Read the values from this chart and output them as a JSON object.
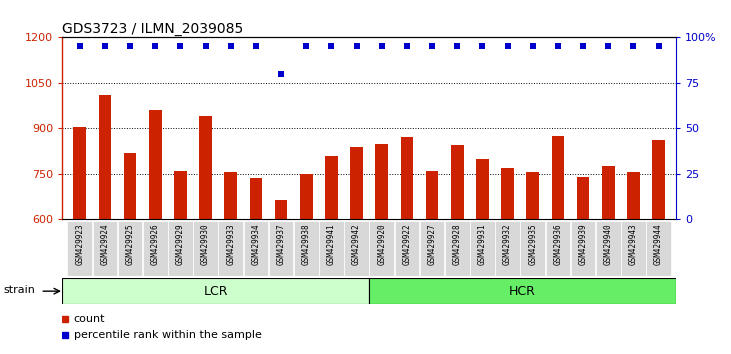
{
  "title": "GDS3723 / ILMN_2039085",
  "samples": [
    "GSM429923",
    "GSM429924",
    "GSM429925",
    "GSM429926",
    "GSM429929",
    "GSM429930",
    "GSM429933",
    "GSM429934",
    "GSM429937",
    "GSM429938",
    "GSM429941",
    "GSM429942",
    "GSM429920",
    "GSM429922",
    "GSM429927",
    "GSM429928",
    "GSM429931",
    "GSM429932",
    "GSM429935",
    "GSM429936",
    "GSM429939",
    "GSM429940",
    "GSM429943",
    "GSM429944"
  ],
  "bar_values": [
    905,
    1010,
    820,
    960,
    760,
    940,
    755,
    735,
    665,
    750,
    810,
    840,
    850,
    870,
    760,
    845,
    800,
    770,
    755,
    875,
    740,
    775,
    755,
    860
  ],
  "percentile_values": [
    95,
    95,
    95,
    95,
    95,
    95,
    95,
    95,
    80,
    95,
    95,
    95,
    95,
    95,
    95,
    95,
    95,
    95,
    95,
    95,
    95,
    95,
    95,
    95
  ],
  "bar_color": "#cc2200",
  "dot_color": "#0000cc",
  "lcr_count": 12,
  "hcr_count": 12,
  "lcr_label": "LCR",
  "hcr_label": "HCR",
  "strain_label": "strain",
  "lcr_color": "#ccffcc",
  "hcr_color": "#66ee66",
  "ylim_left": [
    600,
    1200
  ],
  "ylim_right": [
    0,
    100
  ],
  "yticks_left": [
    600,
    750,
    900,
    1050,
    1200
  ],
  "yticks_right": [
    0,
    25,
    50,
    75,
    100
  ],
  "grid_values": [
    750,
    900,
    1050
  ],
  "legend_count_label": "count",
  "legend_pct_label": "percentile rank within the sample",
  "title_fontsize": 10,
  "ylabel_color_left": "#cc2200",
  "ylabel_color_right": "#0000cc",
  "xtick_bg_color": "#d8d8d8"
}
